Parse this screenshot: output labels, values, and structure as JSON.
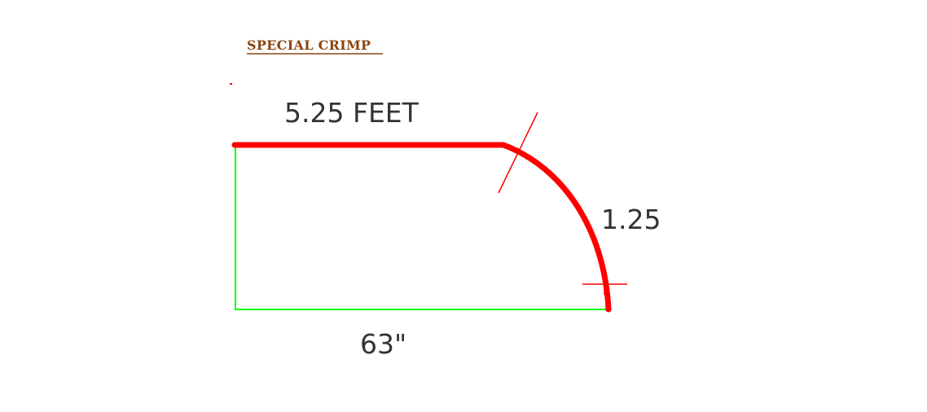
{
  "drawing": {
    "title": "SPECIAL CRIMP",
    "top_dimension": "5.25 FEET",
    "arc_dimension": "1.25",
    "bottom_dimension": "63\""
  },
  "colors": {
    "title": "#8b4513",
    "profile": "#ff0000",
    "reference": "#00ff00",
    "marker": "#ff0000",
    "dimension_text": "#333333",
    "background": "#ffffff"
  }
}
